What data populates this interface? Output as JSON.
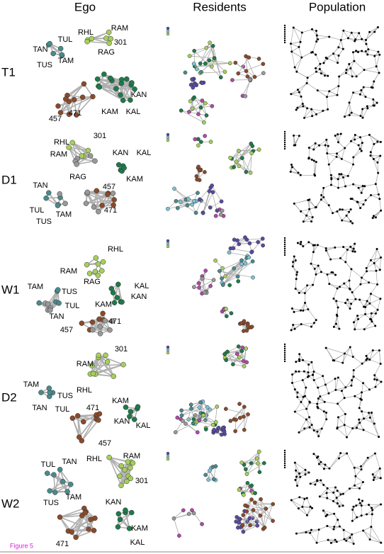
{
  "columns": [
    "Ego",
    "Residents",
    "Population"
  ],
  "rows": [
    {
      "label": "T1",
      "ego_labels": [
        "RAM",
        "RHL",
        "301",
        "RAG",
        "TUL",
        "TAN",
        "TAM",
        "TUS",
        "KAN",
        "KAM",
        "KAL",
        "471",
        "457"
      ]
    },
    {
      "label": "D1",
      "ego_labels": [
        "301",
        "RHL",
        "RAM",
        "RAG",
        "KAN",
        "KAL",
        "KAM",
        "TAN",
        "457",
        "TUL",
        "TAM",
        "TUS",
        "471"
      ]
    },
    {
      "label": "W1",
      "ego_labels": [
        "RHL",
        "RAM",
        "RAG",
        "TAM",
        "TUS",
        "KAL",
        "KAN",
        "TUL",
        "KAM",
        "TAN",
        "457",
        "471"
      ]
    },
    {
      "label": "D2",
      "ego_labels": [
        "301",
        "RAM",
        "RHL",
        "TAM",
        "TUS",
        "TAN",
        "TUL",
        "471",
        "KAM",
        "KAN",
        "KAL",
        "457"
      ]
    },
    {
      "label": "W2",
      "ego_labels": [
        "TUL",
        "TAN",
        "RHL",
        "RAM",
        "301",
        "TAM",
        "TUS",
        "KAN",
        "KAM",
        "KAL",
        "471"
      ]
    }
  ],
  "caption": "Figure 5"
}
